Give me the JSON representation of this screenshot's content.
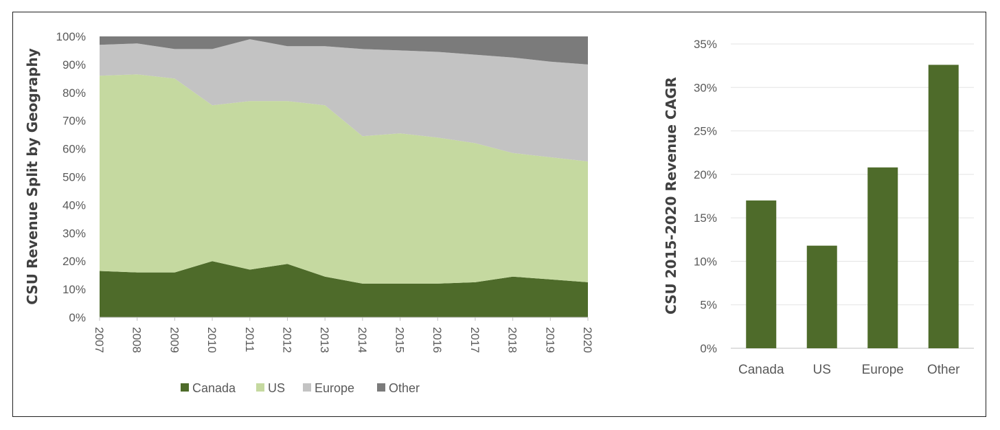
{
  "chart_data": [
    {
      "type": "area",
      "stacked": "percent",
      "ylabel": "CSU Revenue Split by Geography",
      "ylim": [
        0,
        100
      ],
      "y_ticks": [
        "0%",
        "10%",
        "20%",
        "30%",
        "40%",
        "50%",
        "60%",
        "70%",
        "80%",
        "90%",
        "100%"
      ],
      "x": [
        "2007",
        "2008",
        "2009",
        "2010",
        "2011",
        "2012",
        "2013",
        "2014",
        "2015",
        "2016",
        "2017",
        "2018",
        "2019",
        "2020"
      ],
      "series": [
        {
          "name": "Canada",
          "color": "#4e6b2a",
          "values": [
            16.5,
            16,
            16,
            20,
            17,
            19,
            14.5,
            12,
            12,
            12,
            12.5,
            14.5,
            13.5,
            12.5
          ]
        },
        {
          "name": "US",
          "color": "#c5d9a0",
          "values": [
            69.5,
            70.5,
            69,
            55.5,
            60,
            58,
            61,
            52.5,
            53.5,
            52,
            49.5,
            44,
            43.5,
            43
          ]
        },
        {
          "name": "Europe",
          "color": "#c3c3c3",
          "values": [
            11,
            11,
            10.5,
            20,
            22,
            19.5,
            21,
            31,
            29.5,
            30.5,
            31.5,
            34,
            34,
            34.5
          ]
        },
        {
          "name": "Other",
          "color": "#7b7b7b",
          "values": [
            3,
            2.5,
            4.5,
            4.5,
            1,
            3.5,
            3.5,
            4.5,
            5,
            5.5,
            6.5,
            7.5,
            9,
            10
          ]
        }
      ],
      "legend": {
        "position": "bottom",
        "items": [
          "Canada",
          "US",
          "Europe",
          "Other"
        ]
      }
    },
    {
      "type": "bar",
      "ylabel": "CSU 2015-2020 Revenue CAGR",
      "categories": [
        "Canada",
        "US",
        "Europe",
        "Other"
      ],
      "values": [
        17.0,
        11.8,
        20.8,
        32.6
      ],
      "ylim": [
        0,
        35
      ],
      "y_ticks": [
        "0%",
        "5%",
        "10%",
        "15%",
        "20%",
        "25%",
        "30%",
        "35%"
      ],
      "grid": true,
      "bar_color": "#4e6b2a"
    }
  ]
}
